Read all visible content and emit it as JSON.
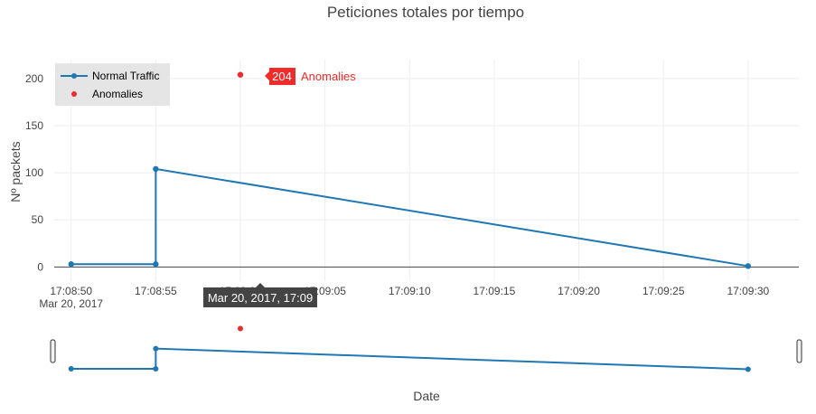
{
  "chart_data": {
    "type": "line",
    "title": "Peticiones totales por tiempo",
    "xlabel": "Date",
    "ylabel": "Nº packets",
    "x_range": [
      "17:08:49",
      "17:09:33"
    ],
    "ylim": [
      -15,
      220
    ],
    "y_ticks": [
      0,
      50,
      100,
      150,
      200
    ],
    "x_ticks": [
      {
        "t": "17:08:50",
        "label": "17:08:50",
        "sublabel": "Mar 20, 2017"
      },
      {
        "t": "17:08:55",
        "label": "17:08:55",
        "sublabel": ""
      },
      {
        "t": "17:09:00",
        "label": "17:09:00",
        "sublabel": ""
      },
      {
        "t": "17:09:05",
        "label": "17:09:05",
        "sublabel": ""
      },
      {
        "t": "17:09:10",
        "label": "17:09:10",
        "sublabel": ""
      },
      {
        "t": "17:09:15",
        "label": "17:09:15",
        "sublabel": ""
      },
      {
        "t": "17:09:20",
        "label": "17:09:20",
        "sublabel": ""
      },
      {
        "t": "17:09:25",
        "label": "17:09:25",
        "sublabel": ""
      },
      {
        "t": "17:09:30",
        "label": "17:09:30",
        "sublabel": ""
      }
    ],
    "series": [
      {
        "name": "Normal Traffic",
        "mode": "lines+markers",
        "color": "#1f77b4",
        "points": [
          {
            "t": "17:08:50",
            "y": 3
          },
          {
            "t": "17:08:55",
            "y": 3
          },
          {
            "t": "17:08:55",
            "y": 104
          },
          {
            "t": "17:09:30",
            "y": 1
          }
        ]
      },
      {
        "name": "Anomalies",
        "mode": "markers",
        "color": "#ef2b2b",
        "points": [
          {
            "t": "17:09:00",
            "y": 204
          }
        ]
      }
    ],
    "legend_position": "top-left",
    "grid": true,
    "hover": {
      "point_label": "204",
      "series_label": "Anomalies",
      "x_label": "Mar 20, 2017, 17:09"
    },
    "range_slider": true
  }
}
